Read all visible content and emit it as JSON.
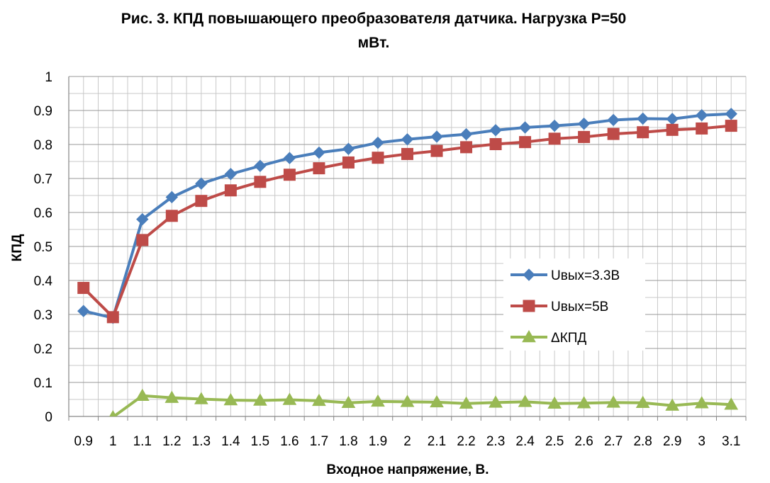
{
  "chart_data": {
    "type": "line",
    "title_line1": "Рис. 3. КПД повышающего преобразователя датчика. Нагрузка P=50",
    "title_line2": "мВт.",
    "xlabel": "Входное напряжение, В.",
    "ylabel": "КПД",
    "ylim": [
      0,
      1
    ],
    "y_ticks": [
      "0",
      "0.1",
      "0.2",
      "0.3",
      "0.4",
      "0.5",
      "0.6",
      "0.7",
      "0.8",
      "0.9",
      "1"
    ],
    "categories": [
      "0.9",
      "1",
      "1.1",
      "1.2",
      "1.3",
      "1.4",
      "1.5",
      "1.6",
      "1.7",
      "1.8",
      "1.9",
      "2",
      "2.1",
      "2.2",
      "2.3",
      "2.4",
      "2.5",
      "2.6",
      "2.7",
      "2.8",
      "2.9",
      "3",
      "3.1"
    ],
    "grid": true,
    "legend_position": "right",
    "series": [
      {
        "name": "Uвых=3.3В",
        "color": "#4a7ebb",
        "marker": "diamond",
        "values": [
          0.31,
          0.29,
          0.58,
          0.645,
          0.685,
          0.713,
          0.737,
          0.76,
          0.776,
          0.787,
          0.805,
          0.815,
          0.823,
          0.83,
          0.842,
          0.85,
          0.855,
          0.861,
          0.872,
          0.876,
          0.875,
          0.886,
          0.89
        ]
      },
      {
        "name": "Uвых=5В",
        "color": "#be4b48",
        "marker": "square",
        "values": [
          0.378,
          0.292,
          0.519,
          0.59,
          0.634,
          0.665,
          0.69,
          0.711,
          0.73,
          0.747,
          0.761,
          0.772,
          0.781,
          0.792,
          0.801,
          0.807,
          0.817,
          0.822,
          0.831,
          0.836,
          0.843,
          0.847,
          0.855
        ]
      },
      {
        "name": "ΔКПД",
        "color": "#98b954",
        "marker": "triangle",
        "values": [
          null,
          -0.002,
          0.061,
          0.055,
          0.051,
          0.048,
          0.047,
          0.049,
          0.046,
          0.04,
          0.044,
          0.043,
          0.042,
          0.038,
          0.041,
          0.043,
          0.038,
          0.039,
          0.041,
          0.04,
          0.032,
          0.039,
          0.035
        ]
      }
    ]
  }
}
